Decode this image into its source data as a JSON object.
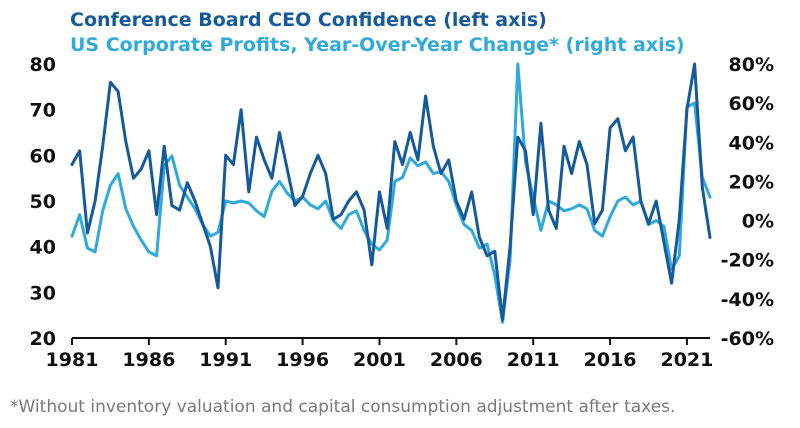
{
  "chart_data": {
    "type": "line",
    "series": [
      {
        "name": "Conference Board CEO Confidence (left axis)",
        "axis": "left",
        "color": "#155a9b",
        "x": [
          1981.0,
          1981.5,
          1982.0,
          1982.5,
          1983.0,
          1983.5,
          1984.0,
          1984.5,
          1985.0,
          1985.5,
          1986.0,
          1986.5,
          1987.0,
          1987.5,
          1988.0,
          1988.5,
          1989.0,
          1989.5,
          1990.0,
          1990.5,
          1991.0,
          1991.5,
          1992.0,
          1992.5,
          1993.0,
          1993.5,
          1994.0,
          1994.5,
          1995.0,
          1995.5,
          1996.0,
          1996.5,
          1997.0,
          1997.5,
          1998.0,
          1998.5,
          1999.0,
          1999.5,
          2000.0,
          2000.5,
          2001.0,
          2001.5,
          2002.0,
          2002.5,
          2003.0,
          2003.5,
          2004.0,
          2004.5,
          2005.0,
          2005.5,
          2006.0,
          2006.5,
          2007.0,
          2007.5,
          2008.0,
          2008.5,
          2009.0,
          2009.5,
          2010.0,
          2010.5,
          2011.0,
          2011.5,
          2012.0,
          2012.5,
          2013.0,
          2013.5,
          2014.0,
          2014.5,
          2015.0,
          2015.5,
          2016.0,
          2016.5,
          2017.0,
          2017.5,
          2018.0,
          2018.5,
          2019.0,
          2019.5,
          2020.0,
          2020.5,
          2021.0,
          2021.5,
          2022.0,
          2022.5
        ],
        "values": [
          58,
          61,
          43,
          50,
          62,
          76,
          74,
          63,
          55,
          57,
          61,
          47,
          62,
          49,
          48,
          54,
          50,
          45,
          40,
          31,
          60,
          58,
          70,
          52,
          64,
          59,
          55,
          65,
          57,
          49,
          51,
          56,
          60,
          56,
          46,
          47,
          50,
          52,
          48,
          36,
          52,
          44,
          63,
          58,
          65,
          59,
          73,
          62,
          56,
          59,
          50,
          46,
          52,
          42,
          38,
          39,
          24,
          40,
          64,
          61,
          47,
          67,
          48,
          44,
          62,
          56,
          63,
          58,
          45,
          48,
          66,
          68,
          61,
          64,
          50,
          45,
          50,
          41,
          32,
          46,
          70,
          80,
          53,
          42
        ]
      },
      {
        "name": "US Corporate Profits, Year-Over-Year Change* (right axis)",
        "axis": "right",
        "color": "#2eaadb",
        "x": [
          1981.0,
          1981.5,
          1982.0,
          1982.5,
          1983.0,
          1983.5,
          1984.0,
          1984.5,
          1985.0,
          1985.5,
          1986.0,
          1986.5,
          1987.0,
          1987.5,
          1988.0,
          1988.5,
          1989.0,
          1989.5,
          1990.0,
          1990.5,
          1991.0,
          1991.5,
          1992.0,
          1992.5,
          1993.0,
          1993.5,
          1994.0,
          1994.5,
          1995.0,
          1995.5,
          1996.0,
          1996.5,
          1997.0,
          1997.5,
          1998.0,
          1998.5,
          1999.0,
          1999.5,
          2000.0,
          2000.5,
          2001.0,
          2001.5,
          2002.0,
          2002.5,
          2003.0,
          2003.5,
          2004.0,
          2004.5,
          2005.0,
          2005.5,
          2006.0,
          2006.5,
          2007.0,
          2007.5,
          2008.0,
          2008.5,
          2009.0,
          2009.5,
          2010.0,
          2010.5,
          2011.0,
          2011.5,
          2012.0,
          2012.5,
          2013.0,
          2013.5,
          2014.0,
          2014.5,
          2015.0,
          2015.5,
          2016.0,
          2016.5,
          2017.0,
          2017.5,
          2018.0,
          2018.5,
          2019.0,
          2019.5,
          2020.0,
          2020.5,
          2021.0,
          2021.5,
          2022.0,
          2022.5
        ],
        "values": [
          -8,
          3,
          -14,
          -16,
          5,
          18,
          24,
          6,
          -3,
          -10,
          -16,
          -18,
          28,
          33,
          18,
          12,
          6,
          -2,
          -8,
          -6,
          10,
          9,
          10,
          9,
          5,
          2,
          15,
          20,
          14,
          10,
          12,
          8,
          6,
          10,
          0,
          -4,
          3,
          5,
          -5,
          -12,
          -15,
          -10,
          20,
          22,
          32,
          28,
          30,
          24,
          25,
          20,
          8,
          -2,
          -5,
          -14,
          -12,
          -28,
          -52,
          -20,
          80,
          30,
          12,
          -5,
          10,
          8,
          5,
          6,
          8,
          6,
          -5,
          -8,
          2,
          10,
          12,
          8,
          10,
          -2,
          0,
          -3,
          -25,
          -18,
          58,
          60,
          22,
          12
        ]
      }
    ],
    "left_axis": {
      "ylim": [
        20,
        80
      ],
      "ticks": [
        "20",
        "30",
        "40",
        "50",
        "60",
        "70",
        "80"
      ]
    },
    "right_axis": {
      "ylim": [
        -60,
        80
      ],
      "ticks": [
        "-60%",
        "-40%",
        "-20%",
        "0%",
        "20%",
        "40%",
        "60%",
        "80%"
      ]
    },
    "x_axis": {
      "xlim": [
        1981,
        2022.5
      ],
      "ticks": [
        "1981",
        "1986",
        "1991",
        "1996",
        "2001",
        "2006",
        "2011",
        "2016",
        "2021"
      ]
    },
    "legend": [
      {
        "label": "Conference Board CEO Confidence (left axis)",
        "color": "#155a9b"
      },
      {
        "label": "US Corporate Profits, Year-Over-Year Change* (right axis)",
        "color": "#2eaadb"
      }
    ],
    "grid": false
  },
  "footnote": "*Without inventory valuation and capital consumption adjustment after taxes."
}
